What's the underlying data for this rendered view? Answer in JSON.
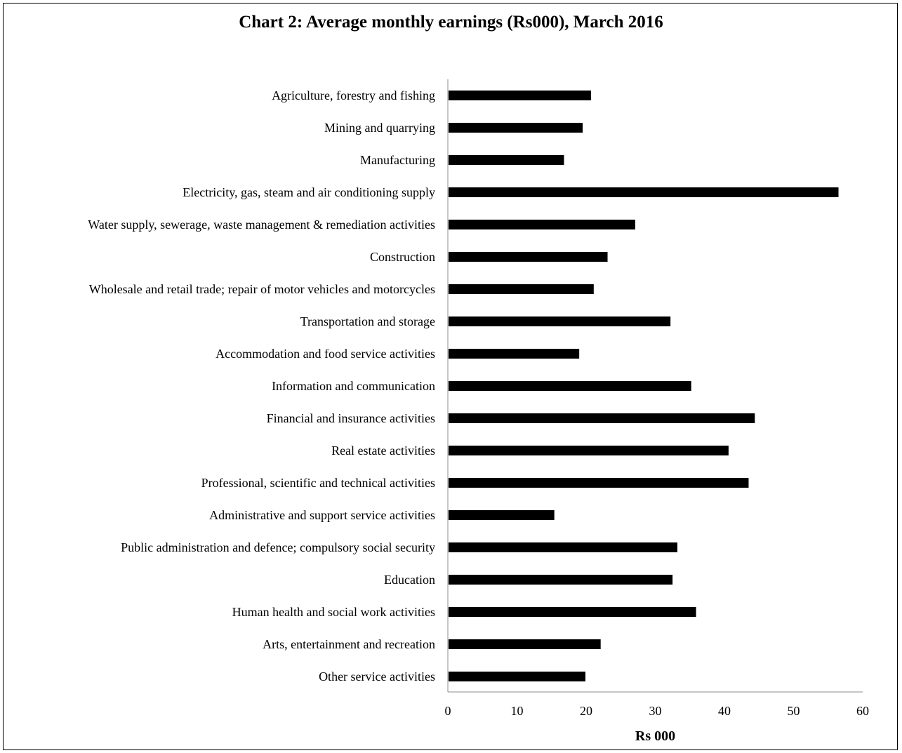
{
  "chart_data": {
    "type": "bar",
    "orientation": "horizontal",
    "title": "Chart 2: Average monthly earnings (Rs000), March 2016",
    "xlabel": "Rs 000",
    "ylabel": "",
    "xlim": [
      0,
      60
    ],
    "xticks": [
      0,
      10,
      20,
      30,
      40,
      50,
      60
    ],
    "grid": false,
    "bar_color": "#000000",
    "axis_color": "#8c8c8c",
    "categories": [
      "Agriculture, forestry and fishing",
      "Mining and quarrying",
      "Manufacturing",
      "Electricity, gas, steam and air conditioning supply",
      "Water supply, sewerage, waste management & remediation activities",
      "Construction",
      "Wholesale and retail trade; repair of motor vehicles and motorcycles",
      "Transportation and storage",
      "Accommodation and food service activities",
      "Information and communication",
      "Financial and insurance activities",
      "Real estate activities",
      "Professional, scientific and technical activities",
      "Administrative and support service activities",
      "Public administration and defence; compulsory social security",
      "Education",
      "Human health and social work activities",
      "Arts, entertainment and recreation",
      "Other service activities"
    ],
    "values": [
      20.7,
      19.5,
      16.8,
      56.5,
      27.1,
      23.1,
      21.1,
      32.2,
      19.0,
      35.2,
      44.4,
      40.6,
      43.5,
      15.4,
      33.2,
      32.5,
      35.9,
      22.1,
      19.9
    ]
  }
}
